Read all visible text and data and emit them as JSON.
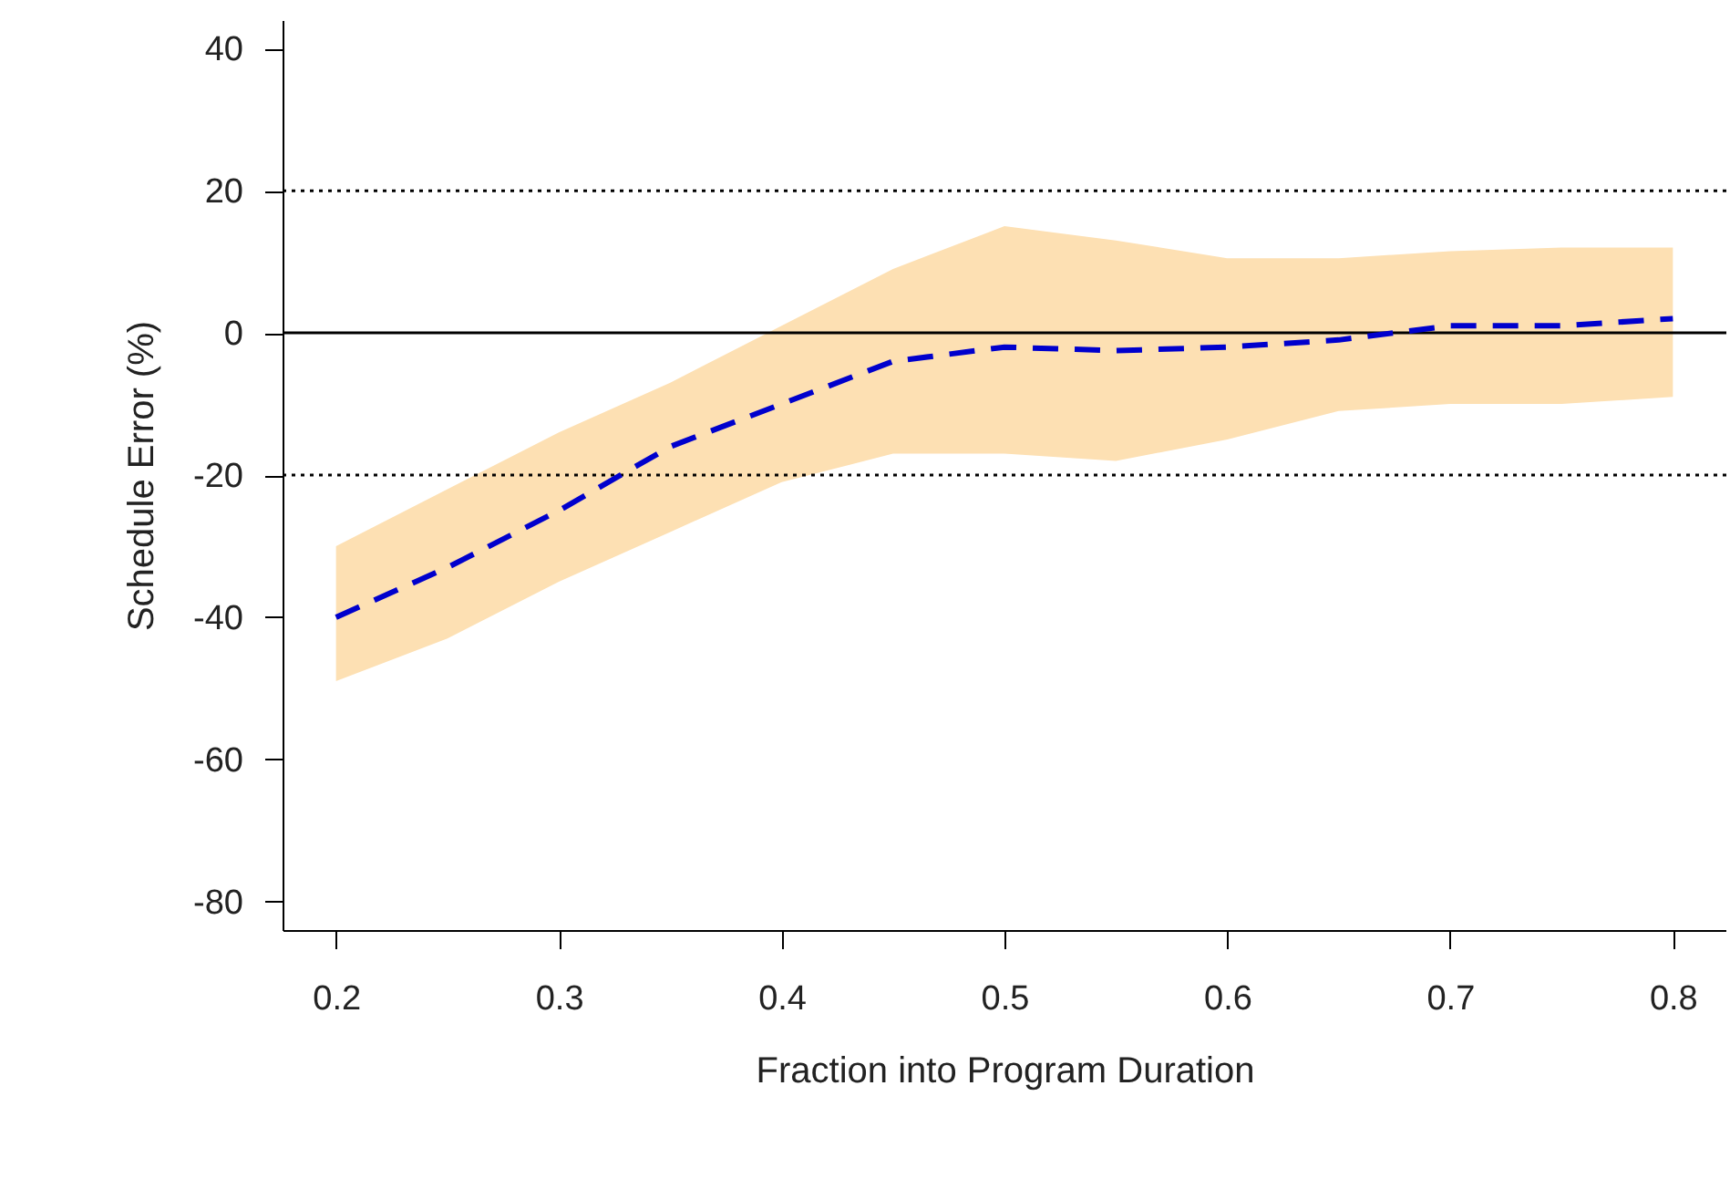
{
  "chart_data": {
    "type": "line",
    "xlabel": "Fraction into Program Duration",
    "ylabel": "Schedule Error (%)",
    "x": [
      0.2,
      0.25,
      0.3,
      0.35,
      0.4,
      0.45,
      0.5,
      0.55,
      0.6,
      0.65,
      0.7,
      0.75,
      0.8
    ],
    "series": [
      {
        "color": "#0000cd",
        "line_style": "dashed",
        "values": [
          -40,
          -33,
          -25,
          -16,
          -10,
          -4,
          -2,
          -2.5,
          -2,
          -1,
          1,
          1,
          2
        ],
        "lower": [
          -49,
          -43,
          -35,
          -28,
          -21,
          -17,
          -17,
          -18,
          -15,
          -11,
          -10,
          -10,
          -9
        ],
        "upper": [
          -30,
          -22,
          -14,
          -7,
          1,
          9,
          15,
          13,
          10.5,
          10.5,
          11.5,
          12,
          12
        ]
      }
    ],
    "xlim": [
      0.176,
      0.824
    ],
    "ylim": [
      -84,
      44
    ],
    "xticks": [
      0.2,
      0.3,
      0.4,
      0.5,
      0.6,
      0.7,
      0.8
    ],
    "yticks": [
      -80,
      -60,
      -40,
      -20,
      0,
      20,
      40
    ],
    "ref_lines": [
      {
        "axis": "y",
        "value": 20,
        "line_style": "dotted",
        "color": "#000000"
      },
      {
        "axis": "y",
        "value": 0,
        "line_style": "solid",
        "color": "#000000"
      },
      {
        "axis": "y",
        "value": -20,
        "line_style": "dotted",
        "color": "#000000"
      }
    ],
    "grid": false,
    "marker": "none"
  }
}
